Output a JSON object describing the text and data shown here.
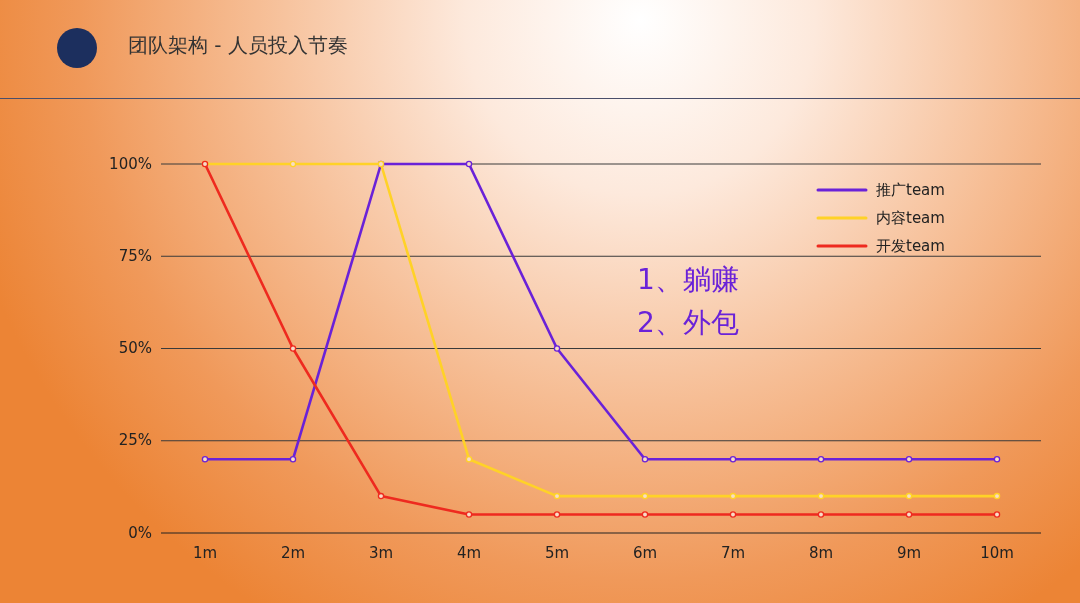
{
  "chart_data": {
    "type": "line",
    "title": "团队架构 - 人员投入节奏",
    "categories": [
      "1m",
      "2m",
      "3m",
      "4m",
      "5m",
      "6m",
      "7m",
      "8m",
      "9m",
      "10m"
    ],
    "series": [
      {
        "name": "推广team",
        "color": "#6a22d8",
        "values": [
          20,
          20,
          100,
          100,
          50,
          20,
          20,
          20,
          20,
          20
        ]
      },
      {
        "name": "内容team",
        "color": "#ffd227",
        "values": [
          100,
          100,
          100,
          20,
          10,
          10,
          10,
          10,
          10,
          10
        ]
      },
      {
        "name": "开发team",
        "color": "#ee2a1f",
        "values": [
          100,
          50,
          10,
          5,
          5,
          5,
          5,
          5,
          5,
          5
        ]
      }
    ],
    "ylim": [
      0,
      100
    ],
    "yticks": [
      {
        "value": 0,
        "label": "0%"
      },
      {
        "value": 25,
        "label": "25%"
      },
      {
        "value": 50,
        "label": "50%"
      },
      {
        "value": 75,
        "label": "75%"
      },
      {
        "value": 100,
        "label": "100%"
      }
    ],
    "grid": "y",
    "legend": "top right",
    "marker": "circle",
    "line_style": "solid",
    "annotations": [
      "1、躺赚",
      "2、外包"
    ]
  }
}
